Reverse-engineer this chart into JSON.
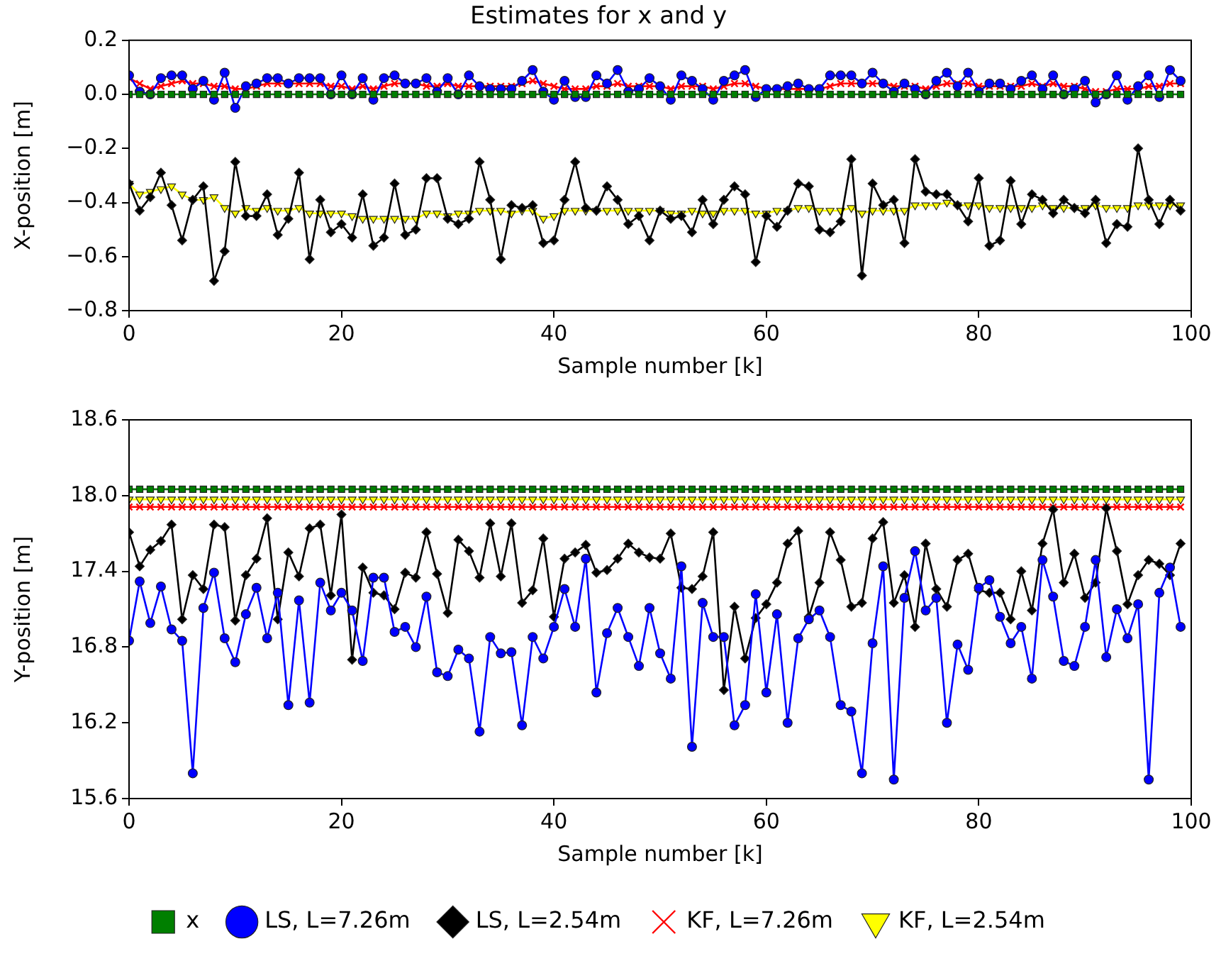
{
  "chart_data": [
    {
      "type": "line",
      "title": "Estimates for x and y",
      "xlabel": "Sample number [k]",
      "ylabel": "X-position [m]",
      "x": [
        0,
        1,
        2,
        3,
        4,
        5,
        6,
        7,
        8,
        9,
        10,
        11,
        12,
        13,
        14,
        15,
        16,
        17,
        18,
        19,
        20,
        21,
        22,
        23,
        24,
        25,
        26,
        27,
        28,
        29,
        30,
        31,
        32,
        33,
        34,
        35,
        36,
        37,
        38,
        39,
        40,
        41,
        42,
        43,
        44,
        45,
        46,
        47,
        48,
        49,
        50,
        51,
        52,
        53,
        54,
        55,
        56,
        57,
        58,
        59,
        60,
        61,
        62,
        63,
        64,
        65,
        66,
        67,
        68,
        69,
        70,
        71,
        72,
        73,
        74,
        75,
        76,
        77,
        78,
        79,
        80,
        81,
        82,
        83,
        84,
        85,
        86,
        87,
        88,
        89,
        90,
        91,
        92,
        93,
        94,
        95,
        96,
        97,
        98,
        99
      ],
      "xlim": [
        0,
        100
      ],
      "xticks": [
        0,
        20,
        40,
        60,
        80,
        100
      ],
      "ylim": [
        -0.8,
        0.2
      ],
      "yticks": [
        {
          "value": -0.8,
          "label": "−0.8"
        },
        {
          "value": -0.6,
          "label": "−0.6"
        },
        {
          "value": -0.4,
          "label": "−0.4"
        },
        {
          "value": -0.2,
          "label": "−0.2"
        },
        {
          "value": 0,
          "label": "0.0"
        },
        {
          "value": 0.2,
          "label": "0.2"
        }
      ],
      "series": [
        {
          "color": "#007f00",
          "marker": "square",
          "values": [
            0,
            0,
            0,
            0,
            0,
            0,
            0,
            0,
            0,
            0,
            0,
            0,
            0,
            0,
            0,
            0,
            0,
            0,
            0,
            0,
            0,
            0,
            0,
            0,
            0,
            0,
            0,
            0,
            0,
            0,
            0,
            0,
            0,
            0,
            0,
            0,
            0,
            0,
            0,
            0,
            0,
            0,
            0,
            0,
            0,
            0,
            0,
            0,
            0,
            0,
            0,
            0,
            0,
            0,
            0,
            0,
            0,
            0,
            0,
            0,
            0,
            0,
            0,
            0,
            0,
            0,
            0,
            0,
            0,
            0,
            0,
            0,
            0,
            0,
            0,
            0,
            0,
            0,
            0,
            0,
            0,
            0,
            0,
            0,
            0,
            0,
            0,
            0,
            0,
            0,
            0,
            0,
            0,
            0,
            0,
            0,
            0,
            0,
            0,
            0
          ]
        },
        {
          "color": "#0000ff",
          "marker": "circle",
          "values": [
            0.07,
            0.01,
            0.0,
            0.06,
            0.07,
            0.07,
            0.02,
            0.05,
            -0.02,
            0.08,
            -0.05,
            0.03,
            0.04,
            0.06,
            0.06,
            0.04,
            0.06,
            0.06,
            0.06,
            0.0,
            0.07,
            0.0,
            0.06,
            -0.02,
            0.06,
            0.07,
            0.04,
            0.04,
            0.06,
            0.01,
            0.06,
            0.0,
            0.07,
            0.03,
            0.02,
            0.02,
            0.02,
            0.05,
            0.09,
            0.01,
            -0.02,
            0.05,
            -0.01,
            -0.01,
            0.07,
            0.04,
            0.09,
            0.01,
            0.02,
            0.06,
            0.03,
            -0.02,
            0.07,
            0.05,
            0.02,
            -0.02,
            0.05,
            0.07,
            0.09,
            -0.01,
            0.02,
            0.02,
            0.03,
            0.04,
            0.02,
            0.02,
            0.07,
            0.07,
            0.07,
            0.04,
            0.08,
            0.04,
            0.01,
            0.04,
            0.02,
            0.0,
            0.05,
            0.08,
            0.03,
            0.08,
            0.01,
            0.04,
            0.04,
            0.02,
            0.05,
            0.07,
            0.02,
            0.07,
            0.0,
            0.02,
            0.05,
            -0.03,
            0.0,
            0.07,
            -0.02,
            0.03,
            0.07,
            -0.01,
            0.09,
            0.05
          ]
        },
        {
          "color": "#000000",
          "marker": "diamond",
          "values": [
            -0.33,
            -0.43,
            -0.38,
            -0.29,
            -0.41,
            -0.54,
            -0.39,
            -0.34,
            -0.69,
            -0.58,
            -0.25,
            -0.45,
            -0.45,
            -0.37,
            -0.52,
            -0.46,
            -0.29,
            -0.61,
            -0.39,
            -0.51,
            -0.48,
            -0.53,
            -0.37,
            -0.56,
            -0.53,
            -0.33,
            -0.52,
            -0.5,
            -0.31,
            -0.31,
            -0.46,
            -0.48,
            -0.46,
            -0.25,
            -0.39,
            -0.61,
            -0.41,
            -0.42,
            -0.41,
            -0.55,
            -0.54,
            -0.39,
            -0.25,
            -0.42,
            -0.43,
            -0.34,
            -0.39,
            -0.48,
            -0.45,
            -0.54,
            -0.43,
            -0.46,
            -0.45,
            -0.51,
            -0.39,
            -0.48,
            -0.39,
            -0.34,
            -0.37,
            -0.62,
            -0.45,
            -0.49,
            -0.43,
            -0.33,
            -0.34,
            -0.5,
            -0.51,
            -0.47,
            -0.24,
            -0.67,
            -0.33,
            -0.41,
            -0.39,
            -0.55,
            -0.24,
            -0.36,
            -0.37,
            -0.37,
            -0.41,
            -0.47,
            -0.31,
            -0.56,
            -0.54,
            -0.32,
            -0.48,
            -0.37,
            -0.39,
            -0.44,
            -0.39,
            -0.42,
            -0.44,
            -0.39,
            -0.55,
            -0.48,
            -0.49,
            -0.2,
            -0.39,
            -0.48,
            -0.39,
            -0.43
          ]
        },
        {
          "color": "#ff0000",
          "marker": "cross",
          "values": [
            0.06,
            0.04,
            0.02,
            0.03,
            0.04,
            0.05,
            0.04,
            0.04,
            0.03,
            0.03,
            0.02,
            0.02,
            0.03,
            0.04,
            0.04,
            0.04,
            0.04,
            0.04,
            0.04,
            0.03,
            0.03,
            0.02,
            0.03,
            0.02,
            0.03,
            0.04,
            0.04,
            0.04,
            0.03,
            0.03,
            0.04,
            0.03,
            0.03,
            0.03,
            0.03,
            0.03,
            0.03,
            0.04,
            0.05,
            0.04,
            0.03,
            0.02,
            0.02,
            0.02,
            0.03,
            0.03,
            0.04,
            0.03,
            0.03,
            0.03,
            0.03,
            0.02,
            0.03,
            0.03,
            0.03,
            0.02,
            0.03,
            0.04,
            0.04,
            0.03,
            0.02,
            0.02,
            0.02,
            0.02,
            0.02,
            0.02,
            0.03,
            0.04,
            0.04,
            0.04,
            0.04,
            0.04,
            0.03,
            0.03,
            0.03,
            0.02,
            0.03,
            0.04,
            0.04,
            0.04,
            0.03,
            0.03,
            0.03,
            0.03,
            0.03,
            0.04,
            0.03,
            0.04,
            0.03,
            0.03,
            0.02,
            0.01,
            0.01,
            0.02,
            0.02,
            0.02,
            0.03,
            0.03,
            0.04,
            0.04
          ]
        },
        {
          "color": "#ffff00",
          "marker": "triangle",
          "values": [
            -0.33,
            -0.37,
            -0.36,
            -0.35,
            -0.34,
            -0.37,
            -0.39,
            -0.39,
            -0.38,
            -0.42,
            -0.44,
            -0.42,
            -0.43,
            -0.42,
            -0.43,
            -0.43,
            -0.42,
            -0.44,
            -0.44,
            -0.44,
            -0.44,
            -0.45,
            -0.46,
            -0.46,
            -0.46,
            -0.46,
            -0.46,
            -0.46,
            -0.44,
            -0.44,
            -0.45,
            -0.44,
            -0.44,
            -0.43,
            -0.43,
            -0.43,
            -0.44,
            -0.43,
            -0.43,
            -0.46,
            -0.45,
            -0.43,
            -0.43,
            -0.43,
            -0.43,
            -0.43,
            -0.43,
            -0.43,
            -0.43,
            -0.43,
            -0.43,
            -0.44,
            -0.44,
            -0.43,
            -0.44,
            -0.44,
            -0.43,
            -0.43,
            -0.43,
            -0.44,
            -0.44,
            -0.43,
            -0.43,
            -0.42,
            -0.42,
            -0.43,
            -0.43,
            -0.43,
            -0.42,
            -0.44,
            -0.43,
            -0.43,
            -0.43,
            -0.43,
            -0.41,
            -0.41,
            -0.41,
            -0.4,
            -0.41,
            -0.41,
            -0.41,
            -0.42,
            -0.42,
            -0.42,
            -0.42,
            -0.42,
            -0.41,
            -0.42,
            -0.42,
            -0.42,
            -0.42,
            -0.41,
            -0.42,
            -0.42,
            -0.42,
            -0.41,
            -0.41,
            -0.41,
            -0.41,
            -0.41
          ]
        }
      ]
    },
    {
      "type": "line",
      "xlabel": "Sample number [k]",
      "ylabel": "Y-position [m]",
      "legend": "bottom",
      "x": [
        0,
        1,
        2,
        3,
        4,
        5,
        6,
        7,
        8,
        9,
        10,
        11,
        12,
        13,
        14,
        15,
        16,
        17,
        18,
        19,
        20,
        21,
        22,
        23,
        24,
        25,
        26,
        27,
        28,
        29,
        30,
        31,
        32,
        33,
        34,
        35,
        36,
        37,
        38,
        39,
        40,
        41,
        42,
        43,
        44,
        45,
        46,
        47,
        48,
        49,
        50,
        51,
        52,
        53,
        54,
        55,
        56,
        57,
        58,
        59,
        60,
        61,
        62,
        63,
        64,
        65,
        66,
        67,
        68,
        69,
        70,
        71,
        72,
        73,
        74,
        75,
        76,
        77,
        78,
        79,
        80,
        81,
        82,
        83,
        84,
        85,
        86,
        87,
        88,
        89,
        90,
        91,
        92,
        93,
        94,
        95,
        96,
        97,
        98,
        99
      ],
      "xlim": [
        0,
        100
      ],
      "xticks": [
        0,
        20,
        40,
        60,
        80,
        100
      ],
      "ylim": [
        15.6,
        18.6
      ],
      "yticks": [
        {
          "value": 15.6,
          "label": "15.6"
        },
        {
          "value": 16.2,
          "label": "16.2"
        },
        {
          "value": 16.8,
          "label": "16.8"
        },
        {
          "value": 17.4,
          "label": "17.4"
        },
        {
          "value": 18,
          "label": "18.0"
        },
        {
          "value": 18.6,
          "label": "18.6"
        }
      ],
      "series": [
        {
          "name": "x",
          "color": "#007f00",
          "marker": "square",
          "values": [
            18.05,
            18.05,
            18.05,
            18.05,
            18.05,
            18.05,
            18.05,
            18.05,
            18.05,
            18.05,
            18.05,
            18.05,
            18.05,
            18.05,
            18.05,
            18.05,
            18.05,
            18.05,
            18.05,
            18.05,
            18.05,
            18.05,
            18.05,
            18.05,
            18.05,
            18.05,
            18.05,
            18.05,
            18.05,
            18.05,
            18.05,
            18.05,
            18.05,
            18.05,
            18.05,
            18.05,
            18.05,
            18.05,
            18.05,
            18.05,
            18.05,
            18.05,
            18.05,
            18.05,
            18.05,
            18.05,
            18.05,
            18.05,
            18.05,
            18.05,
            18.05,
            18.05,
            18.05,
            18.05,
            18.05,
            18.05,
            18.05,
            18.05,
            18.05,
            18.05,
            18.05,
            18.05,
            18.05,
            18.05,
            18.05,
            18.05,
            18.05,
            18.05,
            18.05,
            18.05,
            18.05,
            18.05,
            18.05,
            18.05,
            18.05,
            18.05,
            18.05,
            18.05,
            18.05,
            18.05,
            18.05,
            18.05,
            18.05,
            18.05,
            18.05,
            18.05,
            18.05,
            18.05,
            18.05,
            18.05,
            18.05,
            18.05,
            18.05,
            18.05,
            18.05,
            18.05,
            18.05,
            18.05,
            18.05,
            18.05
          ]
        },
        {
          "name": "LS, L=7.26m",
          "color": "#0000ff",
          "marker": "circle",
          "values": [
            16.85,
            17.32,
            16.99,
            17.28,
            16.94,
            16.85,
            15.8,
            17.11,
            17.39,
            16.87,
            16.68,
            17.06,
            17.27,
            16.87,
            17.23,
            16.34,
            17.17,
            16.36,
            17.31,
            17.09,
            17.23,
            17.09,
            16.69,
            17.35,
            17.35,
            16.92,
            16.96,
            16.8,
            17.2,
            16.6,
            16.57,
            16.78,
            16.71,
            16.13,
            16.88,
            16.75,
            16.76,
            16.18,
            16.88,
            16.71,
            16.96,
            17.26,
            16.96,
            17.5,
            16.44,
            16.91,
            17.11,
            16.88,
            16.65,
            17.11,
            16.75,
            16.55,
            17.44,
            16.01,
            17.15,
            16.88,
            16.88,
            16.18,
            16.34,
            17.22,
            16.44,
            17.06,
            16.2,
            16.87,
            17.02,
            17.09,
            16.88,
            16.34,
            16.29,
            15.8,
            16.83,
            17.44,
            15.75,
            17.19,
            17.56,
            17.09,
            17.19,
            16.2,
            16.82,
            16.62,
            17.27,
            17.33,
            17.04,
            16.83,
            16.96,
            16.55,
            17.49,
            17.2,
            16.69,
            16.65,
            16.96,
            17.49,
            16.72,
            17.1,
            16.87,
            17.14,
            15.75,
            17.23,
            17.43,
            16.96
          ]
        },
        {
          "name": "LS, L=2.54m",
          "color": "#000000",
          "marker": "diamond",
          "values": [
            17.71,
            17.44,
            17.57,
            17.64,
            17.77,
            17.02,
            17.37,
            17.26,
            17.77,
            17.75,
            17.01,
            17.37,
            17.5,
            17.82,
            17.02,
            17.55,
            17.36,
            17.74,
            17.77,
            17.21,
            17.85,
            16.7,
            17.43,
            17.23,
            17.21,
            17.1,
            17.39,
            17.35,
            17.71,
            17.38,
            17.07,
            17.65,
            17.56,
            17.35,
            17.78,
            17.36,
            17.78,
            17.15,
            17.25,
            17.66,
            17.04,
            17.5,
            17.55,
            17.61,
            17.39,
            17.41,
            17.5,
            17.62,
            17.55,
            17.51,
            17.5,
            17.7,
            17.27,
            17.26,
            17.36,
            17.71,
            16.46,
            17.12,
            16.71,
            17.03,
            17.14,
            17.31,
            17.62,
            17.72,
            17.04,
            17.31,
            17.71,
            17.49,
            17.12,
            17.15,
            17.66,
            17.79,
            17.15,
            17.37,
            16.96,
            17.62,
            17.26,
            17.12,
            17.49,
            17.54,
            17.25,
            17.23,
            17.23,
            17.02,
            17.4,
            17.09,
            17.62,
            17.89,
            17.31,
            17.54,
            17.19,
            17.31,
            17.9,
            17.56,
            17.14,
            17.37,
            17.49,
            17.46,
            17.37,
            17.62
          ]
        },
        {
          "name": "KF, L=7.26m",
          "color": "#ff0000",
          "marker": "cross",
          "values": [
            17.91,
            17.91,
            17.91,
            17.91,
            17.91,
            17.91,
            17.91,
            17.91,
            17.91,
            17.91,
            17.91,
            17.91,
            17.91,
            17.91,
            17.91,
            17.91,
            17.91,
            17.91,
            17.91,
            17.91,
            17.91,
            17.91,
            17.91,
            17.91,
            17.91,
            17.91,
            17.91,
            17.91,
            17.91,
            17.91,
            17.91,
            17.91,
            17.91,
            17.91,
            17.91,
            17.91,
            17.91,
            17.91,
            17.91,
            17.91,
            17.91,
            17.91,
            17.91,
            17.91,
            17.91,
            17.91,
            17.91,
            17.91,
            17.91,
            17.91,
            17.91,
            17.91,
            17.91,
            17.91,
            17.91,
            17.91,
            17.91,
            17.91,
            17.91,
            17.91,
            17.91,
            17.91,
            17.91,
            17.91,
            17.91,
            17.91,
            17.91,
            17.91,
            17.91,
            17.91,
            17.91,
            17.91,
            17.91,
            17.91,
            17.91,
            17.91,
            17.91,
            17.91,
            17.91,
            17.91,
            17.91,
            17.91,
            17.91,
            17.91,
            17.91,
            17.91,
            17.91,
            17.91,
            17.91,
            17.91,
            17.91,
            17.91,
            17.91,
            17.91,
            17.91,
            17.91,
            17.91,
            17.91,
            17.91,
            17.91
          ]
        },
        {
          "name": "KF, L=2.54m",
          "color": "#ffff00",
          "marker": "triangle",
          "values": [
            17.97,
            17.97,
            17.97,
            17.97,
            17.97,
            17.97,
            17.97,
            17.97,
            17.97,
            17.97,
            17.97,
            17.97,
            17.97,
            17.97,
            17.97,
            17.97,
            17.97,
            17.97,
            17.97,
            17.97,
            17.97,
            17.97,
            17.97,
            17.97,
            17.97,
            17.97,
            17.97,
            17.97,
            17.97,
            17.97,
            17.97,
            17.97,
            17.97,
            17.97,
            17.97,
            17.97,
            17.97,
            17.97,
            17.97,
            17.97,
            17.97,
            17.97,
            17.97,
            17.97,
            17.97,
            17.97,
            17.97,
            17.97,
            17.97,
            17.97,
            17.97,
            17.97,
            17.97,
            17.97,
            17.97,
            17.97,
            17.97,
            17.97,
            17.97,
            17.97,
            17.97,
            17.97,
            17.97,
            17.97,
            17.97,
            17.97,
            17.97,
            17.97,
            17.97,
            17.97,
            17.97,
            17.97,
            17.97,
            17.97,
            17.97,
            17.97,
            17.97,
            17.97,
            17.97,
            17.97,
            17.97,
            17.97,
            17.97,
            17.97,
            17.97,
            17.97,
            17.97,
            17.97,
            17.97,
            17.97,
            17.97,
            17.97,
            17.97,
            17.97,
            17.97,
            17.97,
            17.97,
            17.97,
            17.97,
            17.97
          ]
        }
      ]
    }
  ]
}
